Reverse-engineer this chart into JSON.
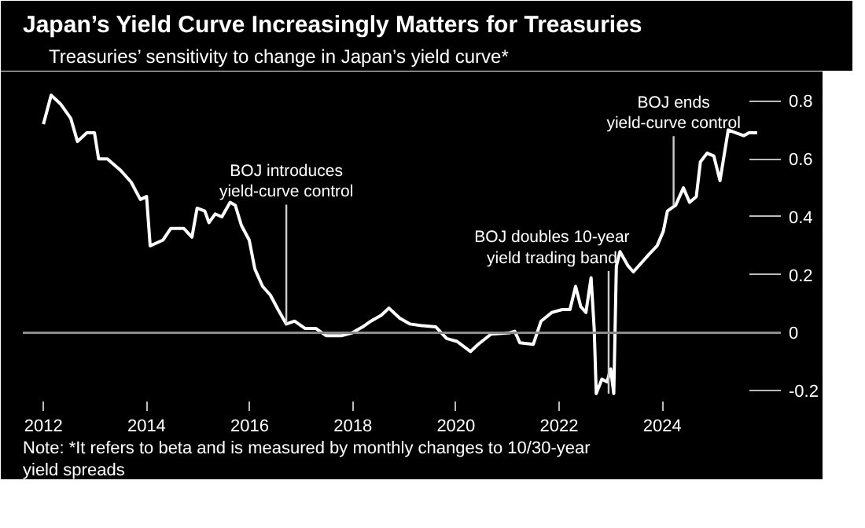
{
  "chart_data": {
    "type": "line",
    "title": "Japan’s Yield Curve Increasingly Matters for Treasuries",
    "x": [
      2012.0,
      2012.15,
      2012.33,
      2012.53,
      2012.66,
      2012.84,
      2012.99,
      2013.07,
      2013.24,
      2013.5,
      2013.7,
      2013.88,
      2014.0,
      2014.07,
      2014.32,
      2014.47,
      2014.72,
      2014.88,
      2014.98,
      2015.13,
      2015.21,
      2015.33,
      2015.46,
      2015.62,
      2015.72,
      2015.84,
      2015.99,
      2016.1,
      2016.25,
      2016.4,
      2016.55,
      2016.71,
      2016.87,
      2017.07,
      2017.28,
      2017.48,
      2017.79,
      2017.99,
      2018.19,
      2018.35,
      2018.55,
      2018.7,
      2018.91,
      2019.11,
      2019.31,
      2019.61,
      2019.82,
      2020.02,
      2020.28,
      2020.43,
      2020.68,
      2021.04,
      2021.14,
      2021.24,
      2021.5,
      2021.65,
      2021.86,
      2022.06,
      2022.21,
      2022.32,
      2022.42,
      2022.52,
      2022.62,
      2022.68,
      2022.72,
      2022.83,
      2022.93,
      2023.0,
      2023.06,
      2023.11,
      2023.18,
      2023.34,
      2023.44,
      2023.59,
      2023.74,
      2023.9,
      2024.02,
      2024.1,
      2024.26,
      2024.41,
      2024.53,
      2024.66,
      2024.74,
      2024.87,
      2025.0,
      2025.12,
      2025.28,
      2025.43,
      2025.58,
      2025.68,
      2025.84
    ],
    "series": [
      {
        "name": "Treasuries’ sensitivity to change in Japan’s yield curve*",
        "color": "#ffffff",
        "values": [
          0.72,
          0.82,
          0.79,
          0.74,
          0.66,
          0.69,
          0.69,
          0.6,
          0.6,
          0.56,
          0.52,
          0.46,
          0.47,
          0.3,
          0.32,
          0.36,
          0.36,
          0.33,
          0.43,
          0.42,
          0.38,
          0.41,
          0.4,
          0.45,
          0.44,
          0.37,
          0.32,
          0.22,
          0.16,
          0.13,
          0.08,
          0.03,
          0.04,
          0.015,
          0.015,
          -0.01,
          -0.01,
          0.0,
          0.02,
          0.04,
          0.06,
          0.085,
          0.05,
          0.03,
          0.025,
          0.02,
          -0.02,
          -0.03,
          -0.065,
          -0.04,
          -0.005,
          0.0,
          0.005,
          -0.035,
          -0.04,
          0.04,
          0.07,
          0.08,
          0.08,
          0.16,
          0.09,
          0.07,
          0.19,
          0.015,
          -0.21,
          -0.16,
          -0.17,
          -0.125,
          -0.21,
          0.23,
          0.28,
          0.23,
          0.21,
          0.24,
          0.27,
          0.3,
          0.35,
          0.42,
          0.44,
          0.5,
          0.45,
          0.47,
          0.59,
          0.62,
          0.61,
          0.525,
          0.7,
          0.69,
          0.68,
          0.69,
          0.69
        ]
      }
    ],
    "xlim": [
      2011.6,
      2026.3
    ],
    "ylim": [
      -0.27,
      0.88
    ],
    "xticks": [
      2012,
      2014,
      2016,
      2018,
      2020,
      2022,
      2024
    ],
    "yticks": [
      -0.2,
      0,
      0.2,
      0.4,
      0.6,
      0.8
    ],
    "ref_lines": [
      {
        "axis": "y",
        "value": 0,
        "color": "#8c8c8c"
      }
    ],
    "annotations": [
      {
        "text": "BOJ introduces\nyield-curve control",
        "x": 2016.71,
        "y": 0.03
      },
      {
        "text": "BOJ doubles 10-year\nyield trading band",
        "x": 2022.96,
        "y": -0.21
      },
      {
        "text": "BOJ ends\nyield-curve control",
        "x": 2024.22,
        "y": 0.44
      },
      "Note: *It refers to beta and is measured by monthly changes to 10/30-year yield spreads"
    ],
    "legend": "top left",
    "grid": false,
    "marker": "none",
    "line_style": "solid"
  }
}
